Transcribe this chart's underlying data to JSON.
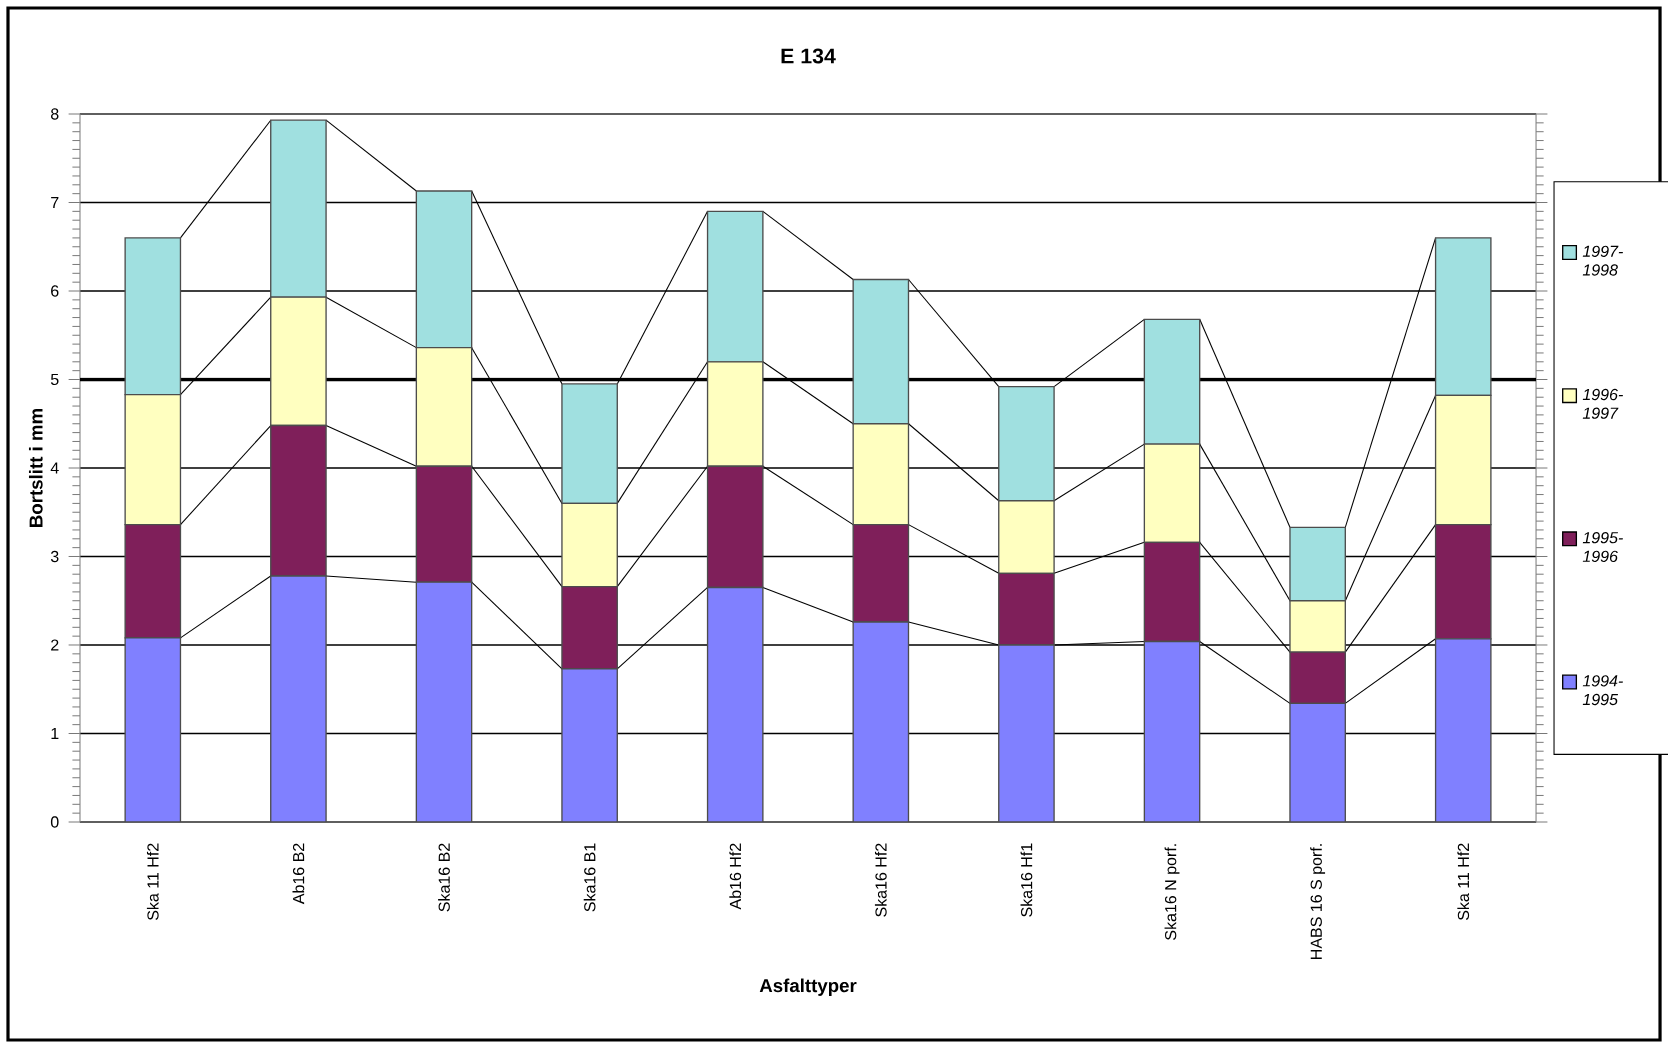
{
  "chart_data": {
    "type": "bar",
    "stacked": true,
    "title": "E 134",
    "xlabel": "Asfalttyper",
    "ylabel": "Bortslitt i mm",
    "categories": [
      "Ska 11 Hf2",
      "Ab16 B2",
      "Ska16 B2",
      "Ska16 B1",
      "Ab16 Hf2",
      "Ska16 Hf2",
      "Ska16 Hf1",
      "Ska16 N porf.",
      "HABS 16 S porf.",
      "Ska 11 Hf2"
    ],
    "series": [
      {
        "name": "1994-1995",
        "color": "#8080ff",
        "values": [
          2.08,
          2.78,
          2.71,
          1.73,
          2.65,
          2.26,
          2.0,
          2.04,
          1.34,
          2.07
        ]
      },
      {
        "name": "1995-1996",
        "color": "#7f1f5a",
        "values": [
          1.28,
          1.7,
          1.31,
          0.93,
          1.37,
          1.1,
          0.81,
          1.12,
          0.58,
          1.29
        ]
      },
      {
        "name": "1996-1997",
        "color": "#ffffc0",
        "values": [
          1.47,
          1.45,
          1.34,
          0.94,
          1.18,
          1.14,
          0.82,
          1.11,
          0.58,
          1.46
        ]
      },
      {
        "name": "1997-1998",
        "color": "#a0e0e0",
        "values": [
          1.77,
          2.0,
          1.77,
          1.35,
          1.7,
          1.63,
          1.29,
          1.41,
          0.83,
          1.78
        ]
      }
    ],
    "ylim": [
      0,
      8
    ],
    "yticks": [
      0,
      1,
      2,
      3,
      4,
      5,
      6,
      7,
      8
    ],
    "grid": "y",
    "legend": "right",
    "ref_lines": [
      {
        "axis": "y",
        "value": 5,
        "color": "#000000"
      }
    ]
  }
}
